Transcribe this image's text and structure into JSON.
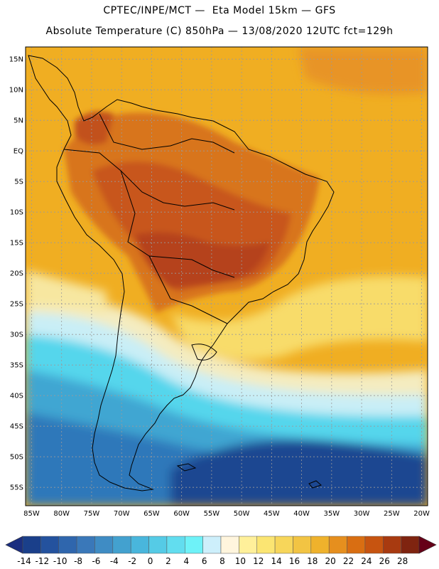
{
  "header": {
    "line1": "CPTEC/INPE/MCT —  Eta Model 15km — GFS",
    "line2": "Absolute Temperature (C) 850hPa — 13/08/2020 12UTC fct=129h"
  },
  "axes": {
    "lat_labels": [
      "15N",
      "10N",
      "5N",
      "EQ",
      "5S",
      "10S",
      "15S",
      "20S",
      "25S",
      "30S",
      "35S",
      "40S",
      "45S",
      "50S",
      "55S"
    ],
    "lat_values": [
      15,
      10,
      5,
      0,
      -5,
      -10,
      -15,
      -20,
      -25,
      -30,
      -35,
      -40,
      -45,
      -50,
      -55
    ],
    "lon_labels": [
      "85W",
      "80W",
      "75W",
      "70W",
      "65W",
      "60W",
      "55W",
      "50W",
      "45W",
      "40W",
      "35W",
      "30W",
      "25W",
      "20W"
    ],
    "lon_values": [
      -85,
      -80,
      -75,
      -70,
      -65,
      -60,
      -55,
      -50,
      -45,
      -40,
      -35,
      -30,
      -25,
      -20
    ],
    "lat_range": [
      -58,
      17
    ],
    "lon_range": [
      -86,
      -19
    ]
  },
  "colorbar": {
    "labels": [
      "-14",
      "-12",
      "-10",
      "-8",
      "-6",
      "-4",
      "-2",
      "0",
      "2",
      "4",
      "6",
      "8",
      "10",
      "12",
      "14",
      "16",
      "18",
      "20",
      "22",
      "24",
      "26",
      "28"
    ],
    "colors": [
      "#1a3f8a",
      "#24529e",
      "#2f66ad",
      "#3a78b9",
      "#3f8cc4",
      "#43a1cf",
      "#49b6dc",
      "#55cbe6",
      "#62ddef",
      "#6ef2f8",
      "#cdeffb",
      "#fff5dd",
      "#fff09a",
      "#fbe572",
      "#f7d65a",
      "#f2c443",
      "#efb22c",
      "#e68f1e",
      "#d96e12",
      "#c75410",
      "#a83a10",
      "#7f2410"
    ],
    "low_arrow_color": "#1b2e80",
    "high_arrow_color": "#660018"
  },
  "colors": {
    "ocean_warm": "#f0b224",
    "land_hot": "#c75818"
  }
}
